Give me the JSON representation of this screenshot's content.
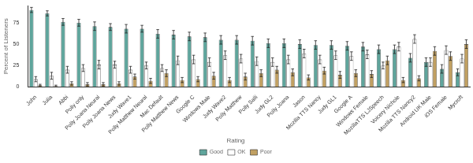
{
  "chart_data": {
    "type": "bar",
    "y_label": "Percent of Listeners",
    "legend_title": "Rating",
    "legend": "bottom",
    "grid": false,
    "ylim": [
      0,
      95
    ],
    "yticks": [
      0,
      25,
      50,
      75
    ],
    "categories": [
      "John",
      "Julia",
      "Abbi",
      "Polly only",
      "Polly Joana Neural",
      "Polly Joana News",
      "Judy Wave1",
      "Polly Matthew Neural",
      "Mac Default",
      "Polly Matthew News",
      "Google C",
      "Windows Male",
      "Judy Wave2",
      "Polly Matthew",
      "Polly Salli",
      "Judy GL2",
      "Polly Joana",
      "Jason",
      "Mozilla TTS Nancy",
      "Judy GL1",
      "Google A",
      "Windows Female",
      "MozillaTTS LJSpeech",
      "Voicery Nichole",
      "Mozilla TTS Nancy2",
      "Android UK Male",
      "iOS Female",
      "Mycroft"
    ],
    "series": [
      {
        "name": "Good",
        "color": "#5fa59c",
        "values": [
          90,
          86,
          76,
          75,
          71,
          70,
          68,
          68,
          62,
          61,
          59,
          58,
          55,
          55,
          54,
          51,
          51,
          50,
          49,
          49,
          48,
          47,
          44,
          44,
          34,
          29,
          21,
          17
        ],
        "errors": [
          3,
          3,
          4,
          4,
          5,
          4,
          5,
          4,
          5,
          5,
          5,
          5,
          5,
          5,
          5,
          5,
          5,
          5,
          5,
          5,
          5,
          5,
          5,
          5,
          5,
          5,
          5,
          4
        ]
      },
      {
        "name": "OK",
        "color": "#ffffff",
        "values": [
          9,
          13,
          20,
          22,
          26,
          26,
          20,
          25,
          22,
          31,
          32,
          29,
          37,
          33,
          30,
          29,
          32,
          39,
          32,
          37,
          36,
          38,
          25,
          47,
          56,
          29,
          43,
          33
        ],
        "errors": [
          3,
          4,
          4,
          4,
          5,
          4,
          4,
          4,
          4,
          5,
          5,
          5,
          5,
          5,
          5,
          5,
          5,
          5,
          5,
          5,
          5,
          5,
          4,
          5,
          5,
          5,
          5,
          5
        ]
      },
      {
        "name": "Poor",
        "color": "#c1a062",
        "values": [
          2,
          1,
          4,
          3,
          3,
          4,
          12,
          7,
          16,
          8,
          9,
          13,
          8,
          12,
          16,
          20,
          17,
          11,
          19,
          14,
          16,
          15,
          31,
          8,
          10,
          42,
          36,
          50
        ],
        "errors": [
          1,
          1,
          2,
          2,
          2,
          2,
          3,
          3,
          4,
          3,
          3,
          4,
          3,
          4,
          4,
          4,
          4,
          3,
          4,
          4,
          4,
          4,
          5,
          3,
          3,
          5,
          5,
          5
        ]
      }
    ]
  }
}
